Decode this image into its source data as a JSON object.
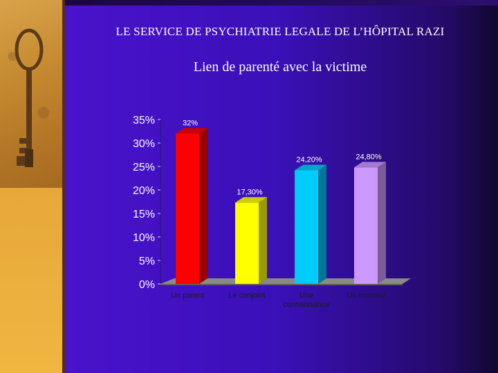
{
  "slide": {
    "title": "LE SERVICE DE PSYCHIATRIE LEGALE DE L’HÔPITAL RAZI",
    "subtitle": "Lien de parenté avec la victime"
  },
  "chart_data": {
    "type": "bar",
    "title": "Lien de parenté avec la victime",
    "categories": [
      "Un parent",
      "Le conjoint",
      "Une connaissance",
      "Un inconnu"
    ],
    "values": [
      32,
      17.3,
      24.2,
      24.8
    ],
    "data_labels": [
      "32%",
      "17,30%",
      "24,20%",
      "24,80%"
    ],
    "ylim": [
      0,
      35
    ],
    "yticks": [
      "0%",
      "5%",
      "10%",
      "15%",
      "20%",
      "25%",
      "30%",
      "35%"
    ],
    "xlabel": "",
    "ylabel": "",
    "grid": false,
    "legend": "none",
    "colors": {
      "bar_fronts": [
        "#ff0000",
        "#ffff00",
        "#00ccff",
        "#cc99ff"
      ],
      "bar_sides": [
        "#990000",
        "#999900",
        "#007799",
        "#7a5c99"
      ],
      "bar_tops": [
        "#cc0000",
        "#cccc00",
        "#00a3cc",
        "#a37acc"
      ],
      "floor": "#8a8a8a",
      "tick_text": "#ffffff",
      "category_text": "#1a1a1a",
      "data_label_text": "#ffffff"
    }
  }
}
